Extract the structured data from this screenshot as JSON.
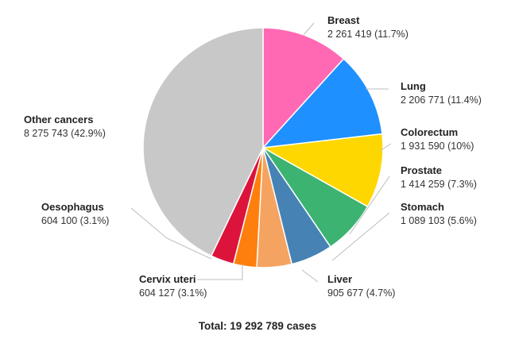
{
  "chart_data": {
    "type": "pie",
    "total_label": "Total: 19 292 789 cases",
    "slices": [
      {
        "name": "Breast",
        "value_label": "2 261 419 (11.7%)",
        "value": 2261419,
        "percent": 11.7,
        "color": "#FF69B4"
      },
      {
        "name": "Lung",
        "value_label": "2 206 771 (11.4%)",
        "value": 2206771,
        "percent": 11.4,
        "color": "#1E90FF"
      },
      {
        "name": "Colorectum",
        "value_label": "1 931 590 (10%)",
        "value": 1931590,
        "percent": 10.0,
        "color": "#FFD700"
      },
      {
        "name": "Prostate",
        "value_label": "1 414 259 (7.3%)",
        "value": 1414259,
        "percent": 7.3,
        "color": "#3CB371"
      },
      {
        "name": "Stomach",
        "value_label": "1 089 103 (5.6%)",
        "value": 1089103,
        "percent": 5.6,
        "color": "#4682B4"
      },
      {
        "name": "Liver",
        "value_label": "905 677 (4.7%)",
        "value": 905677,
        "percent": 4.7,
        "color": "#F4A460"
      },
      {
        "name": "Cervix uteri",
        "value_label": "604 127 (3.1%)",
        "value": 604127,
        "percent": 3.1,
        "color": "#FF7F0E"
      },
      {
        "name": "Oesophagus",
        "value_label": "604 100 (3.1%)",
        "value": 604100,
        "percent": 3.1,
        "color": "#DC143C"
      },
      {
        "name": "Other cancers",
        "value_label": "8 275 743 (42.9%)",
        "value": 8275743,
        "percent": 42.9,
        "color": "#C8C8C8"
      }
    ]
  }
}
